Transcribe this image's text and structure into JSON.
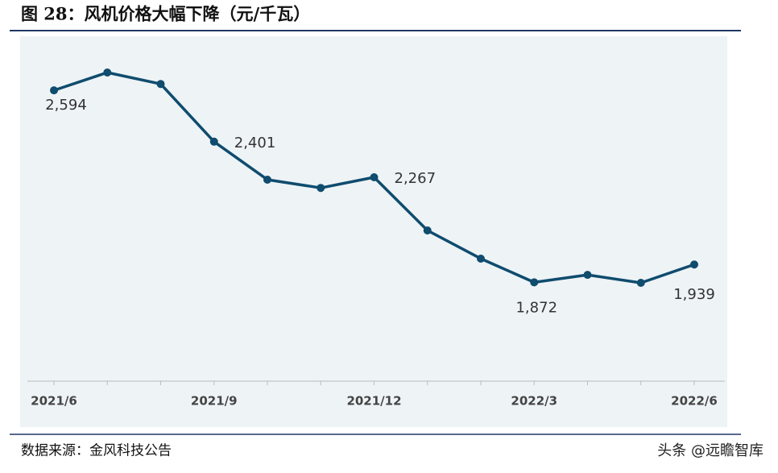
{
  "chart_data": {
    "type": "line",
    "title": "图 28：风机价格大幅下降（元/千瓦）",
    "source": "数据来源：金风科技公告",
    "watermark": "头条 @远瞻智库",
    "categories": [
      "2021/6",
      null,
      null,
      "2021/9",
      null,
      null,
      "2021/12",
      null,
      null,
      "2022/3",
      null,
      null,
      "2022/6"
    ],
    "series": [
      {
        "name": "风机价格",
        "color": "#0f4c6e",
        "values": [
          2594,
          2661,
          2618,
          2401,
          2258,
          2227,
          2267,
          2067,
          1961,
          1872,
          1900,
          1870,
          1939
        ],
        "value_labels": [
          "2,594",
          null,
          null,
          "2,401",
          null,
          null,
          "2,267",
          null,
          null,
          "1,872",
          null,
          null,
          "1,939"
        ]
      }
    ]
  }
}
